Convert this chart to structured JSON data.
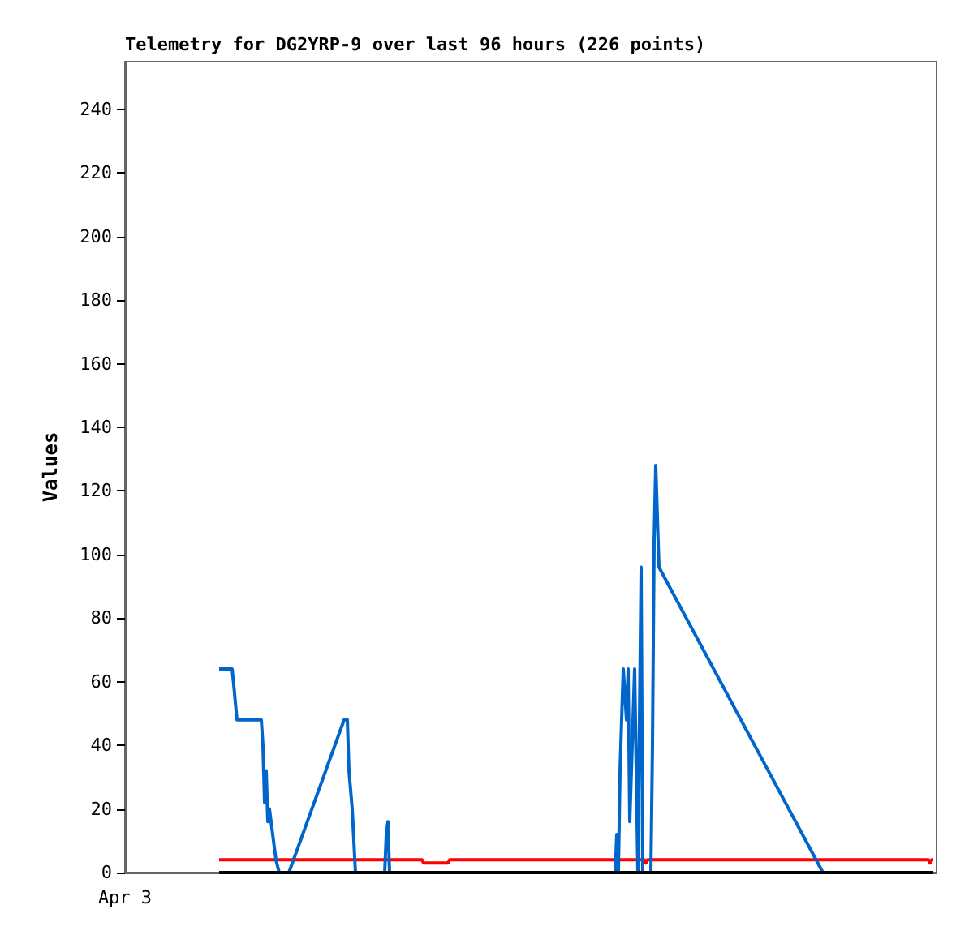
{
  "chart_data": {
    "type": "line",
    "title": "Telemetry for DG2YRP-9 over last 96 hours (226 points)",
    "ylabel": "Values",
    "categories": [
      "Apr 3",
      null,
      null,
      null,
      null,
      null,
      null,
      null,
      null,
      null,
      null,
      null,
      null,
      null,
      null,
      null,
      null,
      null,
      null,
      null,
      null,
      null,
      null,
      null,
      null,
      null,
      null,
      null,
      null,
      null,
      null,
      null,
      null,
      null,
      null,
      null,
      null,
      null,
      null,
      null,
      null,
      null,
      null,
      null,
      null,
      null,
      null,
      null,
      null,
      null,
      null,
      null,
      null,
      null,
      null,
      null,
      null,
      null,
      null,
      null,
      null,
      null,
      null,
      null,
      null,
      null,
      null,
      null,
      null,
      null,
      null,
      null,
      null,
      null,
      null,
      null,
      null,
      null,
      null,
      null,
      null,
      null,
      null,
      null,
      null,
      null,
      null,
      null,
      null,
      null,
      null,
      null,
      null,
      null,
      null,
      null,
      null,
      null,
      null,
      null,
      null,
      null,
      null,
      null,
      null,
      null,
      null,
      null,
      null,
      null,
      null,
      null,
      null,
      null,
      null,
      null,
      null,
      null,
      null,
      null,
      null,
      null,
      null,
      null,
      null,
      null,
      null,
      null,
      null,
      null,
      null,
      null,
      null,
      null,
      null,
      null,
      null,
      null,
      null,
      null,
      null,
      null,
      null,
      null,
      null,
      null,
      null,
      null,
      null,
      null,
      null,
      null,
      null,
      null,
      null,
      null,
      null,
      null,
      null,
      null,
      null,
      null,
      null,
      null,
      null,
      null,
      null,
      null,
      null,
      null,
      null,
      null,
      null,
      null,
      null,
      null,
      null,
      null,
      null,
      null,
      null,
      null,
      null,
      null,
      null,
      null,
      null,
      null,
      null,
      null,
      null,
      null,
      null,
      null,
      null,
      null,
      null,
      null,
      null,
      null,
      null,
      null,
      null,
      null,
      null,
      null,
      null,
      null,
      null,
      null,
      null,
      null,
      null,
      null,
      null,
      null,
      null,
      null,
      null,
      null,
      null,
      null,
      null,
      null,
      null,
      null,
      null,
      null,
      null,
      null,
      null,
      null,
      null,
      null,
      null,
      null,
      null,
      null,
      null,
      null,
      null,
      null,
      null,
      null,
      null,
      null,
      null,
      null,
      null,
      null,
      null,
      null,
      null,
      null,
      null,
      null,
      null,
      null,
      null,
      null,
      null,
      null,
      null,
      null,
      null,
      null,
      null,
      null,
      null,
      null,
      null,
      null,
      null,
      null,
      null,
      null,
      null,
      null,
      null,
      null,
      null,
      null,
      null,
      null,
      null,
      null,
      null,
      null,
      null,
      null,
      null,
      null,
      null,
      null,
      null,
      null,
      null,
      null,
      null,
      null,
      null,
      null,
      null,
      null,
      null,
      null,
      null,
      null,
      null,
      null,
      null,
      null,
      null,
      null,
      null,
      null,
      null,
      null,
      null,
      null,
      null,
      null,
      null,
      null,
      null,
      null,
      null,
      null,
      null,
      null,
      null,
      null,
      null,
      null,
      null,
      null,
      null,
      null,
      null,
      null,
      null,
      null,
      null,
      null,
      null,
      null,
      null,
      null,
      null,
      null,
      null,
      null,
      null,
      null,
      null,
      null,
      null,
      null,
      null,
      null,
      null,
      null,
      null,
      null,
      null,
      null,
      null,
      null,
      null,
      null,
      null,
      null,
      null,
      null,
      null,
      null,
      null,
      null,
      null,
      null,
      null,
      null,
      null,
      null,
      null,
      null,
      null,
      null,
      null,
      null,
      null,
      null,
      null,
      null,
      null,
      null,
      null,
      null,
      null,
      null,
      null,
      null,
      null,
      null,
      null,
      null,
      null,
      null,
      null,
      null,
      null,
      null,
      null,
      null,
      null,
      null,
      null,
      null,
      null,
      null,
      null,
      null,
      null,
      null,
      null,
      null,
      null,
      null,
      null,
      null,
      null,
      null,
      null,
      null,
      null,
      null,
      null,
      null,
      null,
      null,
      null,
      null,
      null,
      null,
      null,
      null,
      null,
      null,
      null,
      null,
      null,
      null,
      null,
      null,
      null,
      null,
      null,
      null,
      null,
      null,
      null,
      null,
      null,
      null,
      null,
      null,
      null,
      null,
      null,
      null,
      null,
      null,
      null,
      null,
      null,
      null,
      null,
      null,
      null,
      null,
      null,
      null,
      null,
      null,
      null,
      null,
      null,
      null,
      null,
      null,
      null,
      null,
      null,
      null,
      null,
      null,
      null,
      null,
      null,
      null,
      null
    ],
    "ylim": [
      0,
      255
    ],
    "yticks": [
      0,
      20,
      40,
      60,
      80,
      100,
      120,
      140,
      160,
      180,
      200,
      220,
      240
    ],
    "grid": false,
    "marker": "none",
    "line_style": "solid",
    "series": [
      {
        "color": "#ff0000",
        "values": [
          null,
          null,
          null,
          null,
          null,
          null,
          null,
          null,
          null,
          null,
          null,
          null,
          null,
          null,
          null,
          null,
          null,
          null,
          null,
          null,
          null,
          null,
          null,
          null,
          null,
          null,
          null,
          null,
          null,
          null,
          null,
          null,
          null,
          null,
          null,
          null,
          null,
          null,
          null,
          null,
          null,
          null,
          null,
          null,
          null,
          null,
          null,
          null,
          null,
          null,
          null,
          null,
          null,
          null,
          null,
          null,
          null,
          null,
          4,
          4,
          4,
          4,
          4,
          4,
          4,
          4,
          4,
          4,
          4,
          4,
          4,
          4,
          4,
          4,
          4,
          4,
          4,
          4,
          4,
          4,
          4,
          4,
          4,
          4,
          4,
          4,
          4,
          4,
          4,
          4,
          4,
          4,
          4,
          4,
          4,
          4,
          4,
          4,
          4,
          4,
          4,
          4,
          4,
          4,
          4,
          4,
          4,
          4,
          4,
          4,
          4,
          4,
          4,
          4,
          4,
          4,
          4,
          4,
          4,
          4,
          4,
          4,
          4,
          4,
          4,
          4,
          4,
          4,
          4,
          4,
          4,
          4,
          4,
          4,
          4,
          4,
          4,
          4,
          4,
          4,
          4,
          4,
          4,
          4,
          4,
          4,
          4,
          4,
          4,
          4,
          4,
          4,
          4,
          4,
          4,
          4,
          4,
          4,
          4,
          4,
          4,
          4,
          4,
          4,
          4,
          4,
          4,
          4,
          4,
          4,
          4,
          4,
          4,
          4,
          4,
          4,
          4,
          4,
          4,
          4,
          4,
          4,
          4,
          4,
          3,
          3,
          3,
          3,
          3,
          3,
          3,
          3,
          3,
          3,
          3,
          3,
          3,
          3,
          3,
          3,
          4,
          4,
          4,
          4,
          4,
          4,
          4,
          4,
          4,
          4,
          4,
          4,
          4,
          4,
          4,
          4,
          4,
          4,
          4,
          4,
          4,
          4,
          4,
          4,
          4,
          4,
          4,
          4,
          4,
          4,
          4,
          4,
          4,
          4,
          4,
          4,
          4,
          4,
          4,
          4,
          4,
          4,
          4,
          4,
          4,
          4,
          4,
          4,
          4,
          4,
          4,
          4,
          4,
          4,
          4,
          4,
          4,
          4,
          4,
          4,
          4,
          4,
          4,
          4,
          4,
          4,
          4,
          4,
          4,
          4,
          4,
          4,
          4,
          4,
          4,
          4,
          4,
          4,
          4,
          4,
          4,
          4,
          4,
          4,
          4,
          4,
          4,
          4,
          4,
          4,
          4,
          4,
          4,
          4,
          4,
          4,
          4,
          4,
          4,
          4,
          4,
          4,
          4,
          4,
          4,
          4,
          4,
          4,
          4,
          4,
          4,
          4,
          4,
          4,
          4,
          4,
          4,
          4,
          4,
          4,
          4,
          3,
          4,
          4,
          4,
          4,
          4,
          4,
          4,
          4,
          4,
          4,
          4,
          4,
          4,
          4,
          4,
          4,
          4,
          4,
          4,
          4,
          4,
          4,
          4,
          4,
          4,
          4,
          4,
          4,
          4,
          4,
          4,
          4,
          4,
          4,
          4,
          4,
          4,
          4,
          4,
          4,
          4,
          4,
          4,
          4,
          4,
          4,
          4,
          4,
          4,
          4,
          4,
          4,
          4,
          4,
          4,
          4,
          4,
          4,
          4,
          4,
          4,
          4,
          4,
          4,
          4,
          4,
          4,
          4,
          4,
          4,
          4,
          4,
          4,
          4,
          4,
          4,
          4,
          4,
          4,
          4,
          4,
          4,
          4,
          4,
          4,
          4,
          4,
          4,
          4,
          4,
          4,
          4,
          4,
          4,
          4,
          4,
          4,
          4,
          4,
          4,
          4,
          4,
          4,
          4,
          4,
          4,
          4,
          4,
          4,
          4,
          4,
          4,
          4,
          4,
          4,
          4,
          4,
          4,
          4,
          4,
          4,
          4,
          4,
          4,
          4,
          4,
          4,
          4,
          4,
          4,
          4,
          4,
          4,
          4,
          4,
          4,
          4,
          4,
          4,
          4,
          4,
          4,
          4,
          4,
          4,
          4,
          4,
          4,
          4,
          4,
          4,
          4,
          4,
          4,
          4,
          4,
          4,
          4,
          4,
          4,
          4,
          4,
          4,
          4,
          4,
          4,
          4,
          4,
          4,
          4,
          4,
          4,
          4,
          4,
          3,
          4,
          4,
          null,
          null
        ]
      },
      {
        "color": "#0066cc",
        "values": [
          null,
          null,
          null,
          null,
          null,
          null,
          null,
          null,
          null,
          null,
          null,
          null,
          null,
          null,
          null,
          null,
          null,
          null,
          null,
          null,
          null,
          null,
          null,
          null,
          null,
          null,
          null,
          null,
          null,
          null,
          null,
          null,
          null,
          null,
          null,
          null,
          null,
          null,
          null,
          null,
          null,
          null,
          null,
          null,
          null,
          null,
          null,
          null,
          null,
          null,
          null,
          null,
          null,
          null,
          null,
          null,
          null,
          null,
          64,
          null,
          null,
          null,
          null,
          null,
          null,
          null,
          64,
          59,
          null,
          48,
          null,
          null,
          null,
          null,
          null,
          null,
          null,
          null,
          null,
          null,
          null,
          null,
          null,
          null,
          48,
          40,
          22,
          32,
          16,
          20,
          null,
          12,
          null,
          4,
          null,
          0,
          null,
          null,
          null,
          null,
          null,
          0,
          null,
          null,
          null,
          null,
          null,
          null,
          null,
          null,
          null,
          null,
          null,
          null,
          null,
          null,
          null,
          null,
          null,
          null,
          null,
          null,
          null,
          null,
          null,
          null,
          null,
          null,
          null,
          null,
          null,
          null,
          null,
          null,
          null,
          48,
          null,
          48,
          32,
          null,
          20,
          null,
          0,
          null,
          null,
          null,
          null,
          null,
          null,
          null,
          null,
          null,
          null,
          null,
          null,
          null,
          null,
          null,
          null,
          null,
          0,
          12,
          16,
          0,
          null,
          null,
          null,
          null,
          null,
          null,
          null,
          null,
          null,
          null,
          null,
          null,
          null,
          null,
          null,
          null,
          null,
          null,
          null,
          null,
          null,
          null,
          null,
          null,
          null,
          null,
          null,
          null,
          null,
          null,
          null,
          null,
          null,
          null,
          null,
          null,
          null,
          null,
          null,
          null,
          null,
          null,
          null,
          null,
          null,
          null,
          null,
          null,
          null,
          null,
          null,
          null,
          null,
          null,
          null,
          null,
          null,
          null,
          null,
          null,
          null,
          null,
          null,
          null,
          null,
          null,
          null,
          null,
          null,
          null,
          null,
          null,
          null,
          null,
          null,
          null,
          null,
          null,
          null,
          null,
          null,
          null,
          null,
          null,
          null,
          null,
          null,
          null,
          null,
          null,
          null,
          null,
          null,
          null,
          null,
          null,
          null,
          null,
          null,
          null,
          null,
          null,
          null,
          null,
          null,
          null,
          null,
          null,
          null,
          null,
          null,
          null,
          null,
          null,
          null,
          null,
          null,
          null,
          null,
          null,
          null,
          null,
          null,
          null,
          null,
          null,
          null,
          null,
          null,
          null,
          null,
          null,
          null,
          null,
          null,
          null,
          null,
          null,
          0,
          12,
          0,
          32,
          null,
          64,
          null,
          48,
          64,
          16,
          null,
          null,
          64,
          null,
          0,
          null,
          96,
          0,
          null,
          null,
          null,
          null,
          0,
          40,
          104,
          128,
          null,
          96,
          null,
          null,
          null,
          null,
          null,
          null,
          null,
          null,
          null,
          null,
          null,
          null,
          null,
          null,
          null,
          null,
          null,
          null,
          null,
          null,
          null,
          null,
          null,
          null,
          null,
          null,
          null,
          null,
          null,
          null,
          null,
          null,
          null,
          null,
          null,
          null,
          null,
          null,
          null,
          null,
          null,
          null,
          null,
          null,
          null,
          null,
          null,
          null,
          null,
          null,
          null,
          null,
          null,
          null,
          null,
          null,
          null,
          null,
          null,
          null,
          null,
          null,
          null,
          null,
          null,
          null,
          null,
          null,
          null,
          null,
          null,
          null,
          null,
          null,
          null,
          null,
          null,
          null,
          null,
          null,
          null,
          null,
          null,
          null,
          null,
          null,
          null,
          null,
          null,
          null,
          null,
          null,
          null,
          null,
          null,
          null,
          null,
          null,
          null,
          null,
          0,
          null,
          null,
          null,
          null,
          null,
          null,
          null,
          null,
          null,
          null,
          null,
          null,
          null,
          null,
          null,
          null,
          null,
          null,
          null,
          null,
          null,
          null,
          null,
          null,
          null,
          null,
          null,
          null,
          null,
          null,
          null,
          null,
          null,
          null,
          null,
          null,
          null,
          null,
          null,
          null,
          null,
          null,
          null,
          null,
          null,
          null,
          null,
          null,
          null,
          null,
          null,
          null,
          null,
          null,
          null,
          null,
          null,
          null,
          null,
          null,
          null,
          null,
          null,
          null,
          null,
          null,
          null,
          null,
          null,
          null
        ]
      },
      {
        "color": "#000000",
        "values": [
          null,
          null,
          null,
          null,
          null,
          null,
          null,
          null,
          null,
          null,
          null,
          null,
          null,
          null,
          null,
          null,
          null,
          null,
          null,
          null,
          null,
          null,
          null,
          null,
          null,
          null,
          null,
          null,
          null,
          null,
          null,
          null,
          null,
          null,
          null,
          null,
          null,
          null,
          null,
          null,
          null,
          null,
          null,
          null,
          null,
          null,
          null,
          null,
          null,
          null,
          null,
          null,
          null,
          null,
          null,
          null,
          null,
          null,
          0,
          0,
          0,
          0,
          0,
          0,
          0,
          0,
          0,
          0,
          0,
          0,
          0,
          0,
          0,
          0,
          0,
          0,
          0,
          0,
          0,
          0,
          0,
          0,
          0,
          0,
          0,
          0,
          0,
          0,
          0,
          0,
          0,
          0,
          0,
          0,
          0,
          0,
          0,
          0,
          0,
          0,
          0,
          0,
          0,
          0,
          0,
          0,
          0,
          0,
          0,
          0,
          0,
          0,
          0,
          0,
          0,
          0,
          0,
          0,
          0,
          0,
          0,
          0,
          0,
          0,
          0,
          0,
          0,
          0,
          0,
          0,
          0,
          0,
          0,
          0,
          0,
          0,
          0,
          0,
          0,
          0,
          0,
          0,
          0,
          0,
          0,
          0,
          0,
          0,
          0,
          0,
          0,
          0,
          0,
          0,
          0,
          0,
          0,
          0,
          0,
          0,
          0,
          0,
          0,
          0,
          0,
          0,
          0,
          0,
          0,
          0,
          0,
          0,
          0,
          0,
          0,
          0,
          0,
          0,
          0,
          0,
          0,
          0,
          0,
          0,
          0,
          0,
          0,
          0,
          0,
          0,
          0,
          0,
          0,
          0,
          0,
          0,
          0,
          0,
          0,
          0,
          0,
          0,
          0,
          0,
          0,
          0,
          0,
          0,
          0,
          0,
          0,
          0,
          0,
          0,
          0,
          0,
          0,
          0,
          0,
          0,
          0,
          0,
          0,
          0,
          0,
          0,
          0,
          0,
          0,
          0,
          0,
          0,
          0,
          0,
          0,
          0,
          0,
          0,
          0,
          0,
          0,
          0,
          0,
          0,
          0,
          0,
          0,
          0,
          0,
          0,
          0,
          0,
          0,
          0,
          0,
          0,
          0,
          0,
          0,
          0,
          0,
          0,
          0,
          0,
          0,
          0,
          0,
          0,
          0,
          0,
          0,
          0,
          0,
          0,
          0,
          0,
          0,
          0,
          0,
          0,
          0,
          0,
          0,
          0,
          0,
          0,
          0,
          0,
          0,
          0,
          0,
          0,
          0,
          0,
          0,
          0,
          0,
          0,
          0,
          0,
          0,
          0,
          0,
          0,
          0,
          0,
          0,
          0,
          0,
          0,
          0,
          0,
          0,
          0,
          0,
          0,
          0,
          0,
          0,
          0,
          0,
          0,
          0,
          0,
          0,
          0,
          0,
          0,
          0,
          0,
          0,
          0,
          0,
          0,
          0,
          0,
          0,
          0,
          0,
          0,
          0,
          0,
          0,
          0,
          0,
          0,
          0,
          0,
          0,
          0,
          0,
          0,
          0,
          0,
          0,
          0,
          0,
          0,
          0,
          0,
          0,
          0,
          0,
          0,
          0,
          0,
          0,
          0,
          0,
          0,
          0,
          0,
          0,
          0,
          0,
          0,
          0,
          0,
          0,
          0,
          0,
          0,
          0,
          0,
          0,
          0,
          0,
          0,
          0,
          0,
          0,
          0,
          0,
          0,
          0,
          0,
          0,
          0,
          0,
          0,
          0,
          0,
          0,
          0,
          0,
          0,
          0,
          0,
          0,
          0,
          0,
          0,
          0,
          0,
          0,
          0,
          0,
          0,
          0,
          0,
          0,
          0,
          0,
          0,
          0,
          0,
          0,
          0,
          0,
          0,
          0,
          0,
          0,
          0,
          0,
          0,
          0,
          0,
          0,
          0,
          0,
          0,
          0,
          0,
          0,
          0,
          0,
          0,
          0,
          0,
          0,
          0,
          0,
          0,
          0,
          0,
          0,
          0,
          0,
          0,
          0,
          0,
          0,
          0,
          0,
          0,
          0,
          0,
          0,
          0,
          0,
          0,
          0,
          0,
          0,
          0,
          0,
          0,
          0,
          0,
          0,
          0,
          0,
          0,
          0,
          0,
          0,
          0,
          0,
          0,
          0,
          0,
          0,
          0,
          0,
          0,
          0,
          0,
          0,
          null,
          null
        ]
      }
    ]
  }
}
